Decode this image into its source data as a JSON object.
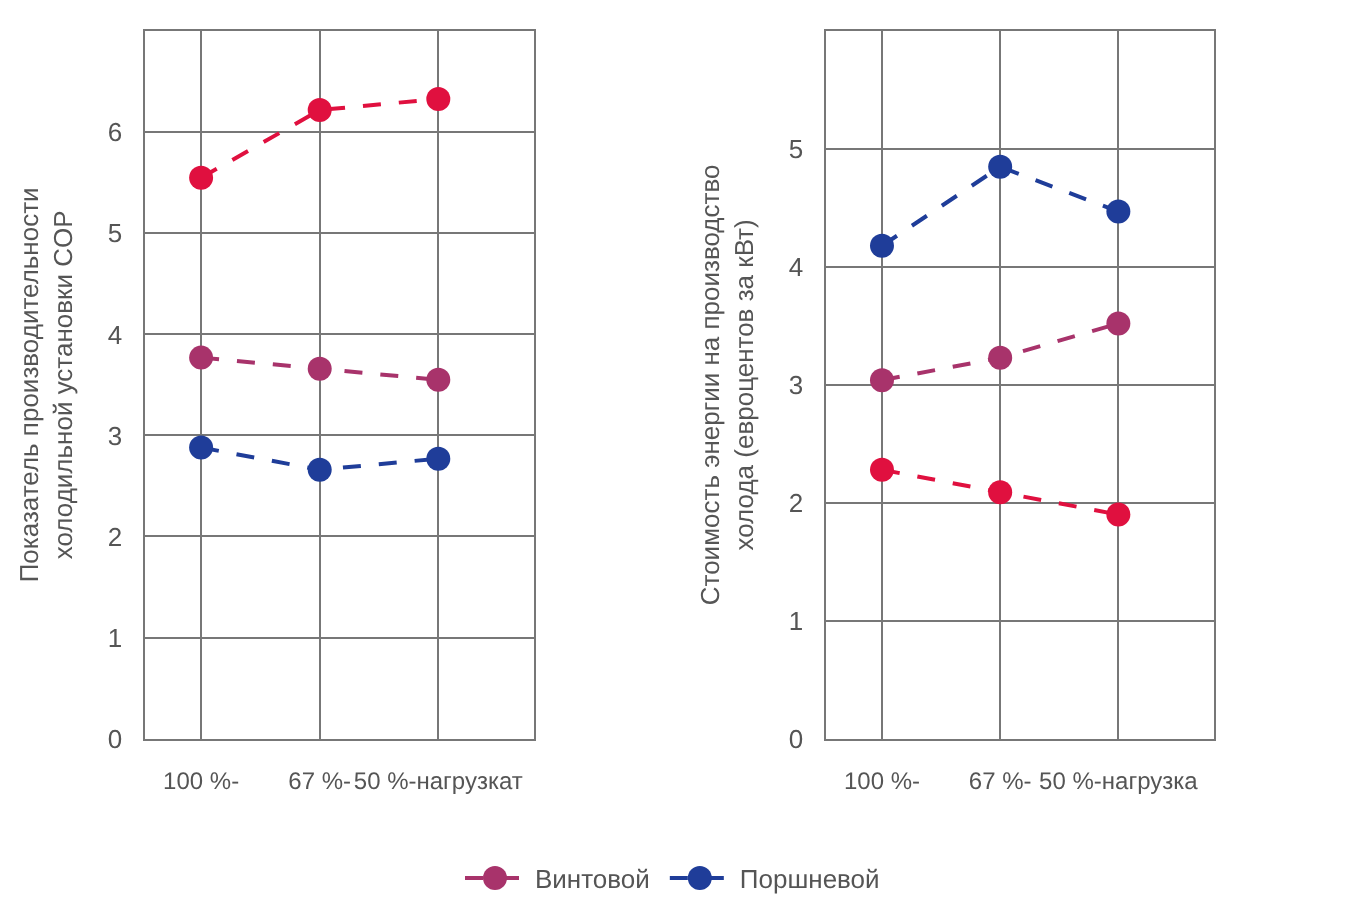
{
  "chart_data": [
    {
      "type": "line",
      "ylabel": "Показатель производительности холодильной установки COP",
      "categories": [
        "100 %-",
        "67 %-",
        "50 %-нагрузкат"
      ],
      "ylim": [
        0,
        7
      ],
      "yticks": [
        0,
        1,
        2,
        3,
        4,
        5,
        6
      ],
      "grid": true,
      "legend": "bottom",
      "marker": "circle",
      "line_style": "dashed",
      "series": [
        {
          "color": "#e0103f",
          "values": [
            5.55,
            6.22,
            6.33
          ]
        },
        {
          "name": "Винтовой",
          "color": "#a8336b",
          "values": [
            3.77,
            3.66,
            3.55
          ]
        },
        {
          "name": "Поршневой",
          "color": "#1f3d99",
          "values": [
            2.88,
            2.66,
            2.77
          ]
        }
      ]
    },
    {
      "type": "line",
      "ylabel": "Стоимость энергии на производство холода (евроцентов за кВт)",
      "categories": [
        "100 %-",
        "67 %-",
        "50 %-нагрузка"
      ],
      "ylim": [
        0,
        6
      ],
      "yticks": [
        0,
        1,
        2,
        3,
        4,
        5
      ],
      "grid": true,
      "legend": "bottom",
      "marker": "circle",
      "line_style": "dashed",
      "series": [
        {
          "color": "#e0103f",
          "values": [
            2.28,
            2.09,
            1.9
          ]
        },
        {
          "name": "Винтовой",
          "color": "#a8336b",
          "values": [
            3.04,
            3.23,
            3.52
          ]
        },
        {
          "name": "Поршневой",
          "color": "#1f3d99",
          "values": [
            4.18,
            4.85,
            4.47
          ]
        }
      ]
    }
  ]
}
